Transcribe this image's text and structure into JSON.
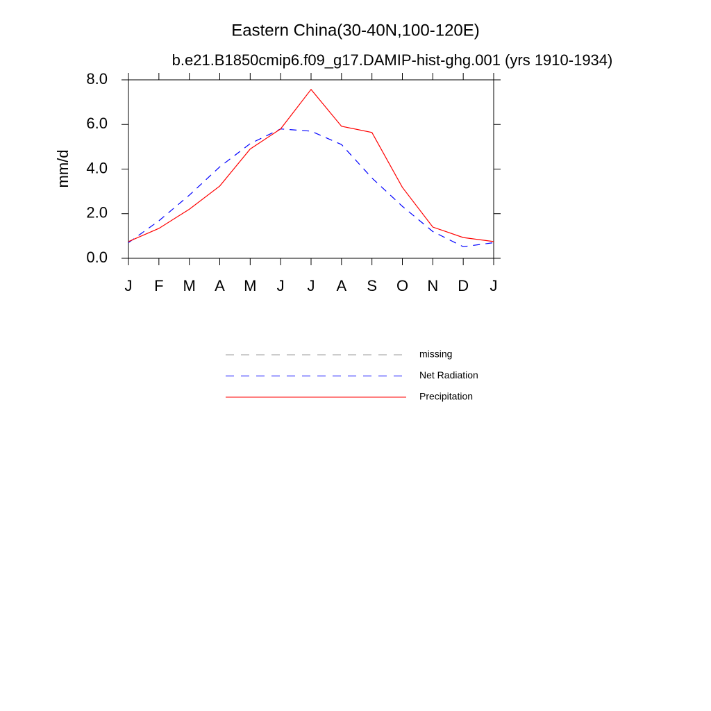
{
  "chart_data": {
    "type": "line",
    "title": "Eastern China(30-40N,100-120E)",
    "subtitle": "b.e21.B1850cmip6.f09_g17.DAMIP-hist-ghg.001 (yrs 1910-1934)",
    "ylabel": "mm/d",
    "categories": [
      "J",
      "F",
      "M",
      "A",
      "M",
      "J",
      "J",
      "A",
      "S",
      "O",
      "N",
      "D",
      "J"
    ],
    "ylim": [
      0,
      8
    ],
    "yticks": [
      {
        "value": 0,
        "label": "0.0"
      },
      {
        "value": 2,
        "label": "2.0"
      },
      {
        "value": 4,
        "label": "4.0"
      },
      {
        "value": 6,
        "label": "6.0"
      },
      {
        "value": 8,
        "label": "8.0"
      }
    ],
    "series": [
      {
        "name": "missing",
        "color": "#999999",
        "dash": true,
        "values": [
          null,
          null,
          null,
          null,
          null,
          null,
          null,
          null,
          null,
          null,
          null,
          null,
          null
        ]
      },
      {
        "name": "Net Radiation",
        "color": "#0000ff",
        "dash": true,
        "values": [
          0.7,
          1.68,
          2.83,
          4.1,
          5.14,
          5.8,
          5.7,
          5.1,
          3.6,
          2.33,
          1.2,
          0.52,
          0.7
        ]
      },
      {
        "name": "Precipitation",
        "color": "#ff0000",
        "dash": false,
        "values": [
          0.75,
          1.34,
          2.2,
          3.24,
          4.9,
          5.8,
          7.57,
          5.92,
          5.64,
          3.18,
          1.4,
          0.93,
          0.75
        ]
      }
    ]
  }
}
